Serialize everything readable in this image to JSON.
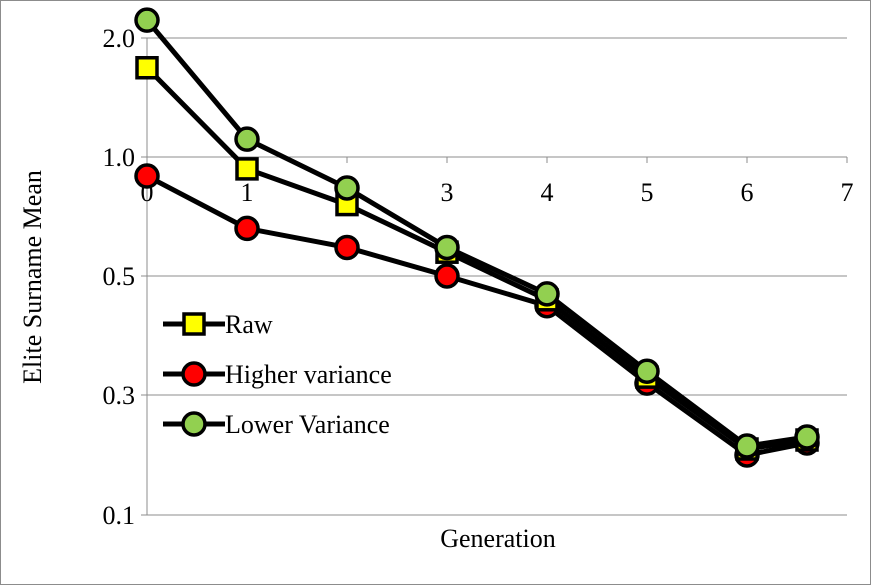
{
  "chart_data": {
    "type": "line",
    "title": "",
    "xlabel": "Generation",
    "ylabel": "Elite Surname Mean",
    "x_ticks": [
      "0",
      "1",
      "2",
      "3",
      "4",
      "5",
      "6",
      "7"
    ],
    "y_ticks": [
      "2.0",
      "1.0",
      "0.5",
      "0.3",
      "0.1"
    ],
    "y_tick_positions": [
      2.0,
      1.0,
      0.5,
      0.3,
      0.1
    ],
    "xlim": [
      0,
      7
    ],
    "x": [
      0,
      1,
      2,
      3,
      4,
      5,
      6,
      6.6
    ],
    "grid": "horizontal",
    "legend_position": "left",
    "series": [
      {
        "name": "Raw",
        "marker": "square",
        "color": "#ffff00",
        "y": [
          1.75,
          0.95,
          0.8,
          0.6,
          0.46,
          0.33,
          0.21,
          0.225
        ]
      },
      {
        "name": "Higher variance",
        "marker": "circle",
        "color": "#ff0000",
        "y": [
          0.92,
          0.7,
          0.62,
          0.5,
          0.45,
          0.32,
          0.2,
          0.22
        ]
      },
      {
        "name": "Lower Variance",
        "marker": "circle",
        "color": "#92d050",
        "y": [
          2.15,
          1.15,
          0.87,
          0.62,
          0.47,
          0.34,
          0.215,
          0.23
        ]
      }
    ]
  }
}
